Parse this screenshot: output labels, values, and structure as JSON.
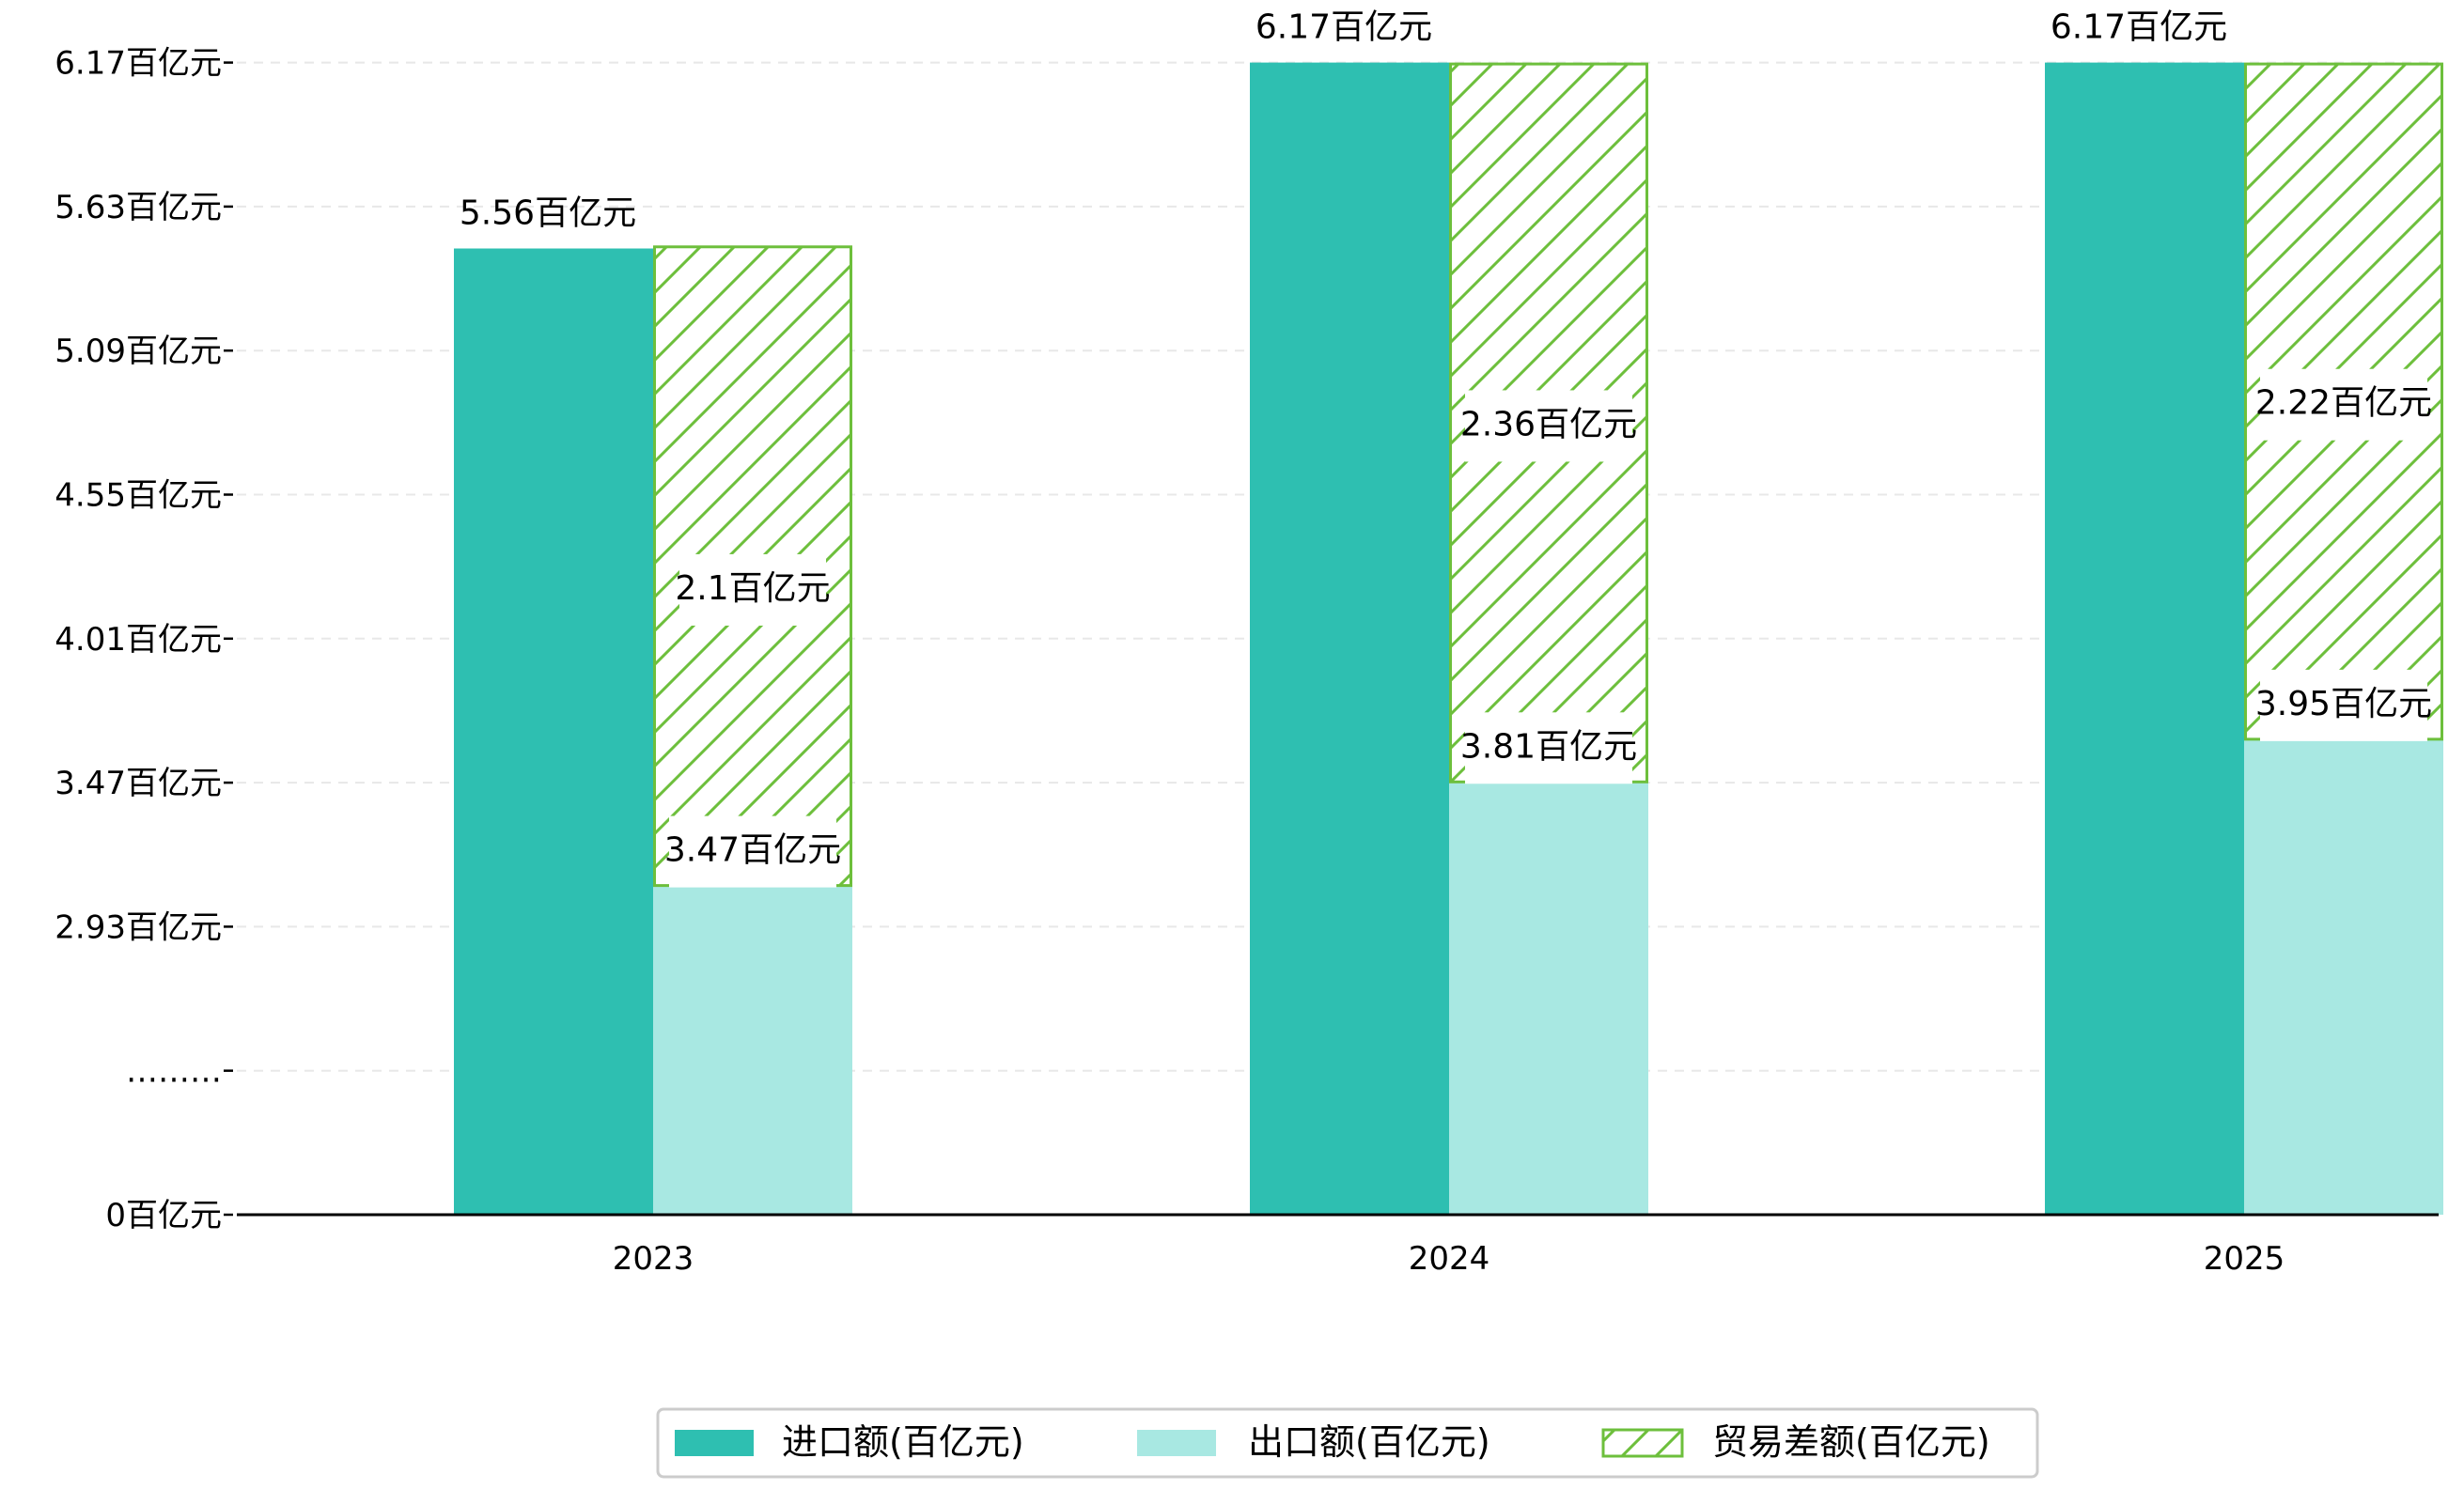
{
  "chart_data": {
    "type": "bar",
    "categories": [
      "2023",
      "2024",
      "2025"
    ],
    "series": [
      {
        "name": "进口额(百亿元)",
        "values": [
          5.56,
          6.17,
          6.17
        ],
        "color": "#2ebfb1",
        "style": "solid"
      },
      {
        "name": "出口额(百亿元)",
        "values": [
          3.47,
          3.81,
          3.95
        ],
        "color": "#a8e8e2",
        "style": "solid"
      },
      {
        "name": "贸易差额(百亿元)",
        "values": [
          2.1,
          2.36,
          2.22
        ],
        "color": "#6dbf3c",
        "style": "hatched"
      }
    ],
    "stacking": "贸易差额 stacked on top of 出口额",
    "y_axis": {
      "tick_labels": [
        "0百亿元",
        "………",
        "2.93百亿元",
        "3.47百亿元",
        "4.01百亿元",
        "4.55百亿元",
        "5.09百亿元",
        "5.63百亿元",
        "6.17百亿元"
      ],
      "tick_values": [
        0,
        null,
        2.93,
        3.47,
        4.01,
        4.55,
        5.09,
        5.63,
        6.17
      ],
      "broken_axis": true,
      "visible_range": [
        2.39,
        6.17
      ]
    },
    "data_labels": {
      "import": [
        "5.56百亿元",
        "6.17百亿元",
        "6.17百亿元"
      ],
      "export": [
        "3.47百亿元",
        "3.81百亿元",
        "3.95百亿元"
      ],
      "balance": [
        "2.1百亿元",
        "2.36百亿元",
        "2.22百亿元"
      ]
    },
    "grid": true,
    "legend_position": "bottom-center",
    "title": "",
    "xlabel": "",
    "ylabel": ""
  }
}
